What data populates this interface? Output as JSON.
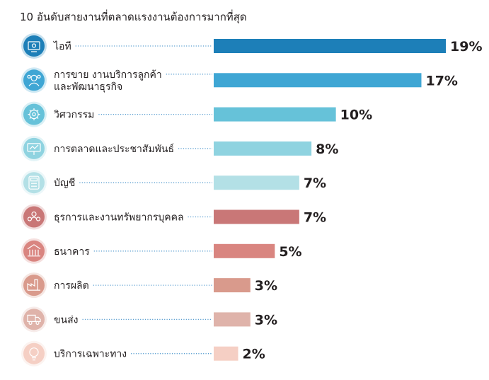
{
  "chart_data": {
    "type": "bar",
    "orientation": "horizontal",
    "title": "10 อันดับสายงานที่ตลาดแรงงานต้องการมากที่สุด",
    "categories": [
      [
        "ไอที"
      ],
      [
        "การขาย งานบริการลูกค้า",
        "และพัฒนาธุรกิจ"
      ],
      [
        "วิศวกรรม"
      ],
      [
        "การตลาดและประชาสัมพันธ์"
      ],
      [
        "บัญชี"
      ],
      [
        "ธุรการและงานทรัพยากรบุคคล"
      ],
      [
        "ธนาคาร"
      ],
      [
        "การผลิต"
      ],
      [
        "ขนส่ง"
      ],
      [
        "บริการเฉพาะทาง"
      ]
    ],
    "values": [
      19,
      17,
      10,
      8,
      7,
      7,
      5,
      3,
      3,
      2
    ],
    "value_labels": [
      "19%",
      "17%",
      "10%",
      "8%",
      "7%",
      "7%",
      "5%",
      "3%",
      "3%",
      "2%"
    ],
    "colors": [
      "#1d7fb8",
      "#3fa6d4",
      "#66c2d9",
      "#8fd3e0",
      "#b3e0e6",
      "#c97777",
      "#d98580",
      "#d99a8c",
      "#dfb3aa",
      "#f5cfc4"
    ],
    "icons": [
      "monitor-icon",
      "customer-service-icon",
      "gear-icon",
      "presentation-icon",
      "calculator-icon",
      "people-icon",
      "bank-icon",
      "factory-icon",
      "truck-icon",
      "bulb-icon"
    ],
    "xlim": [
      0,
      19
    ],
    "grid": false,
    "legend": "none"
  }
}
